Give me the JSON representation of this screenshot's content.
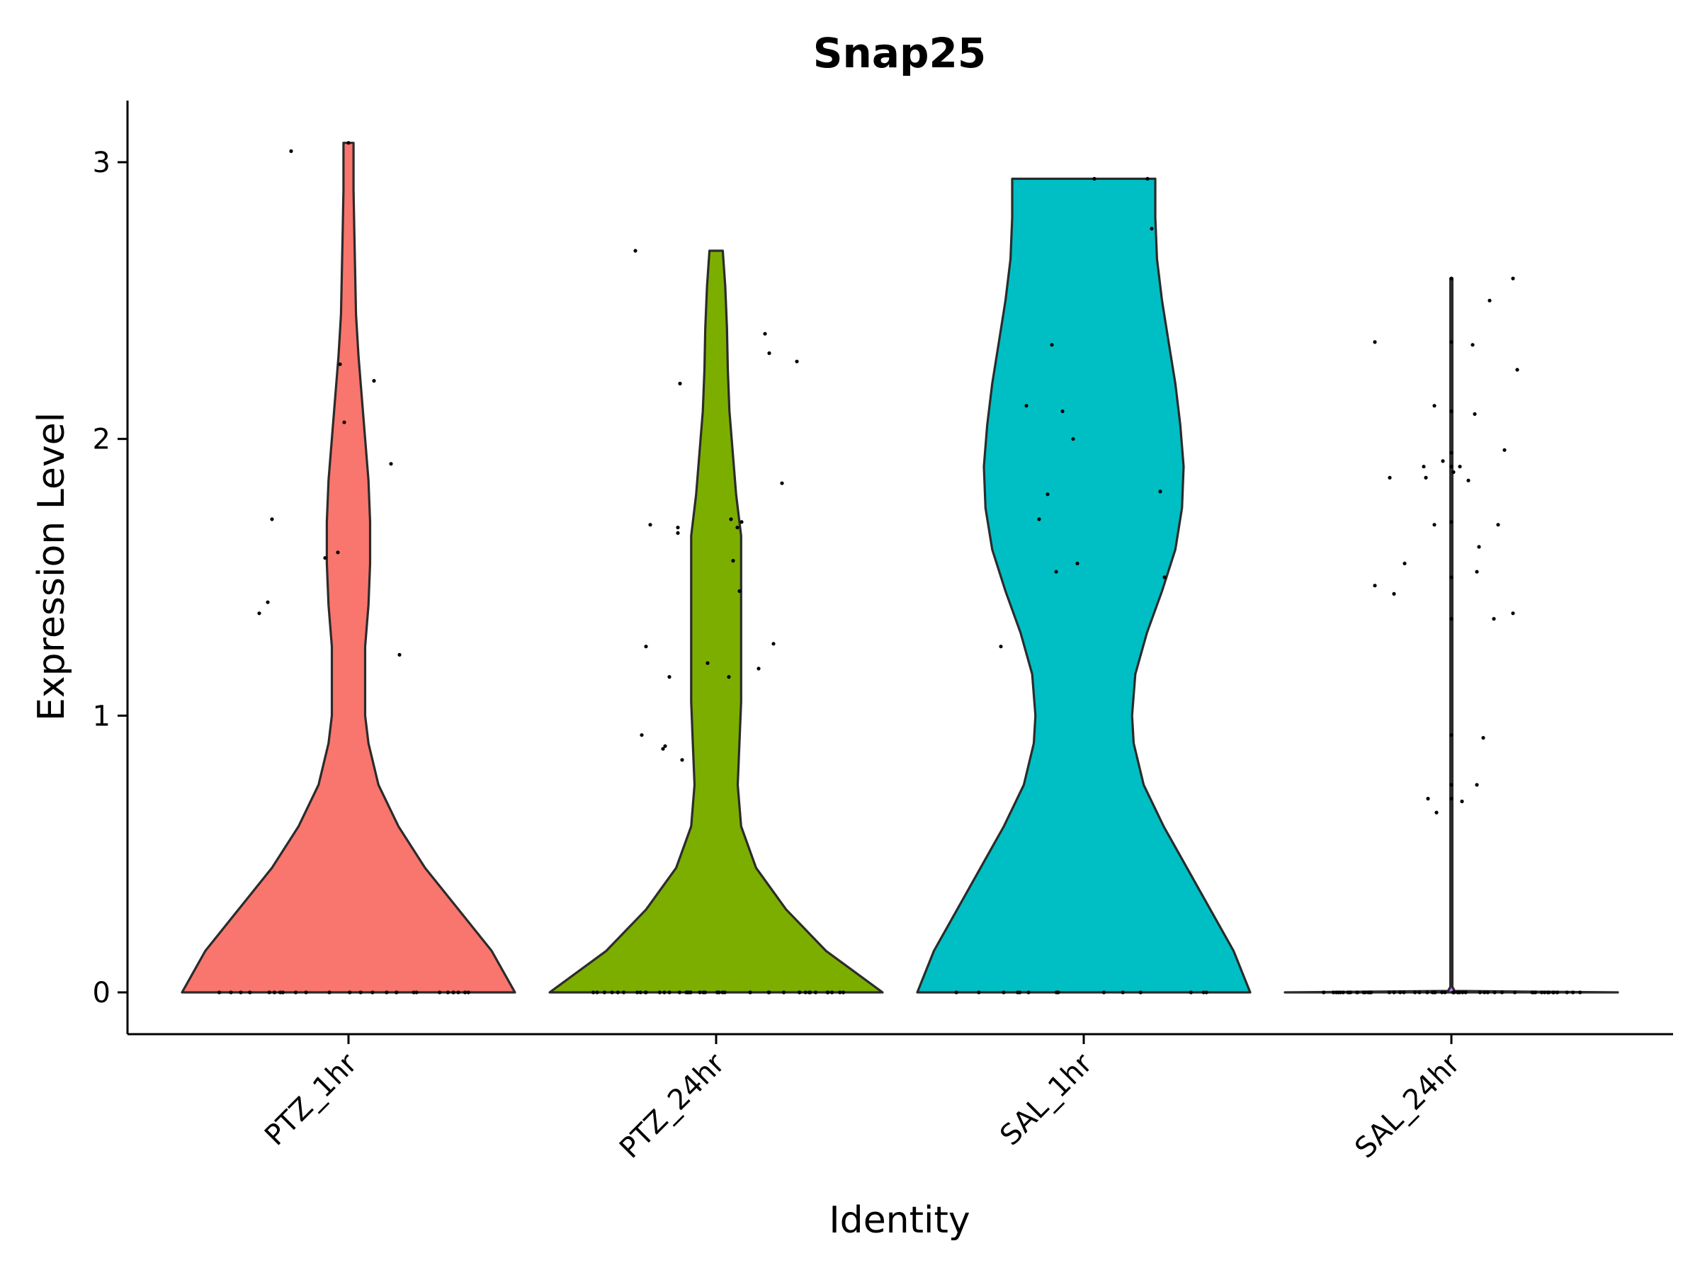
{
  "chart_data": {
    "type": "violin",
    "title": "Snap25",
    "xlabel": "Identity",
    "ylabel": "Expression Level",
    "ylim": [
      -0.15,
      3.22
    ],
    "yticks": [
      0,
      1,
      2,
      3
    ],
    "ytick_labels": [
      "0",
      "1",
      "2",
      "3"
    ],
    "categories": [
      "PTZ_1hr",
      "PTZ_24hr",
      "SAL_1hr",
      "SAL_24hr"
    ],
    "colors": [
      "#F8766D",
      "#7CAE00",
      "#00BFC4",
      "#C77CFF"
    ],
    "series": [
      {
        "category": "PTZ_1hr",
        "max": 3.07,
        "profile": [
          [
            0,
            1.0
          ],
          [
            0.15,
            0.86
          ],
          [
            0.3,
            0.66
          ],
          [
            0.45,
            0.46
          ],
          [
            0.6,
            0.3
          ],
          [
            0.75,
            0.18
          ],
          [
            0.9,
            0.12
          ],
          [
            1.0,
            0.1
          ],
          [
            1.1,
            0.1
          ],
          [
            1.25,
            0.1
          ],
          [
            1.4,
            0.12
          ],
          [
            1.55,
            0.13
          ],
          [
            1.7,
            0.13
          ],
          [
            1.85,
            0.12
          ],
          [
            2.0,
            0.1
          ],
          [
            2.15,
            0.08
          ],
          [
            2.3,
            0.06
          ],
          [
            2.45,
            0.045
          ],
          [
            2.6,
            0.04
          ],
          [
            2.75,
            0.035
          ],
          [
            2.9,
            0.03
          ],
          [
            3.07,
            0.03
          ]
        ],
        "points": [
          [
            -0.42,
            1.37
          ],
          [
            -0.38,
            1.41
          ],
          [
            -0.36,
            1.71
          ],
          [
            -0.27,
            3.04
          ],
          [
            -0.11,
            1.57
          ],
          [
            -0.05,
            1.59
          ],
          [
            -0.04,
            2.27
          ],
          [
            -0.02,
            2.06
          ],
          [
            0.0,
            3.07
          ],
          [
            0.12,
            2.21
          ],
          [
            0.2,
            1.91
          ],
          [
            0.24,
            1.22
          ]
        ],
        "zeros": 26
      },
      {
        "category": "PTZ_24hr",
        "max": 2.68,
        "profile": [
          [
            0,
            1.0
          ],
          [
            0.15,
            0.66
          ],
          [
            0.3,
            0.42
          ],
          [
            0.45,
            0.24
          ],
          [
            0.6,
            0.15
          ],
          [
            0.75,
            0.13
          ],
          [
            0.9,
            0.14
          ],
          [
            1.05,
            0.15
          ],
          [
            1.2,
            0.15
          ],
          [
            1.35,
            0.15
          ],
          [
            1.5,
            0.15
          ],
          [
            1.65,
            0.15
          ],
          [
            1.8,
            0.12
          ],
          [
            1.95,
            0.1
          ],
          [
            2.1,
            0.08
          ],
          [
            2.25,
            0.07
          ],
          [
            2.4,
            0.065
          ],
          [
            2.55,
            0.055
          ],
          [
            2.68,
            0.04
          ]
        ],
        "points": [
          [
            -0.38,
            2.68
          ],
          [
            -0.35,
            0.93
          ],
          [
            -0.33,
            1.25
          ],
          [
            -0.31,
            1.69
          ],
          [
            -0.25,
            0.88
          ],
          [
            -0.24,
            0.89
          ],
          [
            -0.22,
            1.14
          ],
          [
            -0.18,
            1.66
          ],
          [
            -0.18,
            1.68
          ],
          [
            -0.17,
            2.2
          ],
          [
            -0.16,
            0.84
          ],
          [
            -0.04,
            1.19
          ],
          [
            0.06,
            1.14
          ],
          [
            0.07,
            1.71
          ],
          [
            0.08,
            1.56
          ],
          [
            0.1,
            1.68
          ],
          [
            0.11,
            1.45
          ],
          [
            0.12,
            1.7
          ],
          [
            0.2,
            1.17
          ],
          [
            0.23,
            2.38
          ],
          [
            0.25,
            2.31
          ],
          [
            0.27,
            1.26
          ],
          [
            0.31,
            1.84
          ],
          [
            0.38,
            2.28
          ]
        ],
        "zeros": 40
      },
      {
        "category": "SAL_1hr",
        "max": 2.94,
        "profile": [
          [
            0,
            1.0
          ],
          [
            0.15,
            0.9
          ],
          [
            0.3,
            0.76
          ],
          [
            0.45,
            0.62
          ],
          [
            0.6,
            0.48
          ],
          [
            0.75,
            0.36
          ],
          [
            0.9,
            0.3
          ],
          [
            1.0,
            0.29
          ],
          [
            1.15,
            0.31
          ],
          [
            1.3,
            0.38
          ],
          [
            1.45,
            0.47
          ],
          [
            1.6,
            0.55
          ],
          [
            1.75,
            0.59
          ],
          [
            1.9,
            0.6
          ],
          [
            2.05,
            0.58
          ],
          [
            2.2,
            0.55
          ],
          [
            2.35,
            0.51
          ],
          [
            2.5,
            0.47
          ],
          [
            2.65,
            0.44
          ],
          [
            2.8,
            0.43
          ],
          [
            2.94,
            0.43
          ]
        ],
        "points": [
          [
            -0.39,
            1.25
          ],
          [
            -0.27,
            2.12
          ],
          [
            -0.21,
            1.71
          ],
          [
            -0.17,
            1.8
          ],
          [
            -0.15,
            2.34
          ],
          [
            -0.13,
            1.52
          ],
          [
            -0.1,
            2.1
          ],
          [
            -0.05,
            2.0
          ],
          [
            -0.03,
            1.55
          ],
          [
            0.05,
            2.94
          ],
          [
            0.3,
            2.94
          ],
          [
            0.32,
            2.76
          ],
          [
            0.36,
            1.81
          ],
          [
            0.38,
            1.5
          ]
        ],
        "zeros": 14
      },
      {
        "category": "SAL_24hr",
        "max": 2.58,
        "profile": [
          [
            0,
            1.0
          ],
          [
            0.005,
            0.02
          ],
          [
            0.02,
            0.006
          ],
          [
            0.5,
            0.006
          ],
          [
            1.0,
            0.006
          ],
          [
            1.5,
            0.006
          ],
          [
            2.0,
            0.006
          ],
          [
            2.58,
            0.006
          ]
        ],
        "points": [
          [
            -0.36,
            1.47
          ],
          [
            -0.36,
            2.35
          ],
          [
            -0.29,
            1.86
          ],
          [
            -0.27,
            1.44
          ],
          [
            -0.22,
            1.55
          ],
          [
            -0.13,
            1.9
          ],
          [
            -0.12,
            1.86
          ],
          [
            -0.11,
            0.7
          ],
          [
            -0.08,
            1.69
          ],
          [
            -0.08,
            2.12
          ],
          [
            -0.07,
            0.65
          ],
          [
            -0.04,
            1.92
          ],
          [
            0.0,
            2.58
          ],
          [
            0.0,
            2.35
          ],
          [
            0.0,
            2.1
          ],
          [
            0.0,
            1.95
          ],
          [
            0.0,
            1.9
          ],
          [
            0.0,
            1.7
          ],
          [
            0.0,
            1.5
          ],
          [
            0.0,
            1.35
          ],
          [
            0.0,
            0.93
          ],
          [
            0.0,
            0.75
          ],
          [
            0.0,
            0.7
          ],
          [
            0.01,
            1.88
          ],
          [
            0.04,
            1.9
          ],
          [
            0.05,
            0.69
          ],
          [
            0.08,
            1.85
          ],
          [
            0.1,
            2.34
          ],
          [
            0.11,
            2.09
          ],
          [
            0.12,
            1.52
          ],
          [
            0.12,
            0.75
          ],
          [
            0.13,
            1.61
          ],
          [
            0.15,
            0.92
          ],
          [
            0.18,
            2.5
          ],
          [
            0.2,
            1.35
          ],
          [
            0.22,
            1.69
          ],
          [
            0.25,
            1.96
          ],
          [
            0.29,
            1.37
          ],
          [
            0.29,
            2.58
          ],
          [
            0.31,
            2.25
          ]
        ],
        "zeros": 60
      }
    ]
  }
}
